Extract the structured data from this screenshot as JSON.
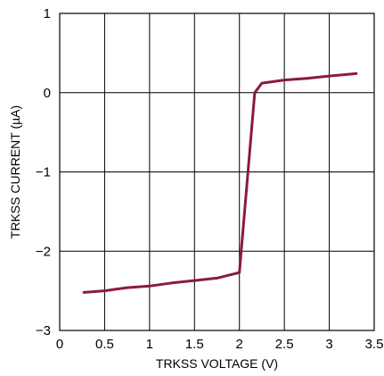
{
  "chart_data": {
    "type": "line",
    "title": "",
    "xlabel": "TRKSS VOLTAGE (V)",
    "ylabel": "TRKSS CURRENT (µA)",
    "xlim": [
      0,
      3.5
    ],
    "ylim": [
      -3,
      1
    ],
    "x_ticks": [
      0,
      0.5,
      1,
      1.5,
      2,
      2.5,
      3,
      3.5
    ],
    "x_tick_labels": [
      "0",
      "0.5",
      "1",
      "1.5",
      "2",
      "2.5",
      "3",
      "3.5"
    ],
    "y_ticks": [
      1,
      0,
      -1,
      -2,
      -3
    ],
    "y_tick_labels": [
      "1",
      "0",
      "−1",
      "−2",
      "−3"
    ],
    "grid": true,
    "legend": "none",
    "series": [
      {
        "color": "#8b1a3c",
        "x": [
          0.27,
          0.5,
          0.75,
          1.0,
          1.25,
          1.5,
          1.75,
          2.0,
          2.17,
          2.25,
          2.5,
          2.75,
          3.0,
          3.3
        ],
        "y": [
          -2.52,
          -2.5,
          -2.46,
          -2.44,
          -2.4,
          -2.37,
          -2.34,
          -2.27,
          0.0,
          0.12,
          0.16,
          0.18,
          0.21,
          0.24
        ]
      }
    ]
  }
}
